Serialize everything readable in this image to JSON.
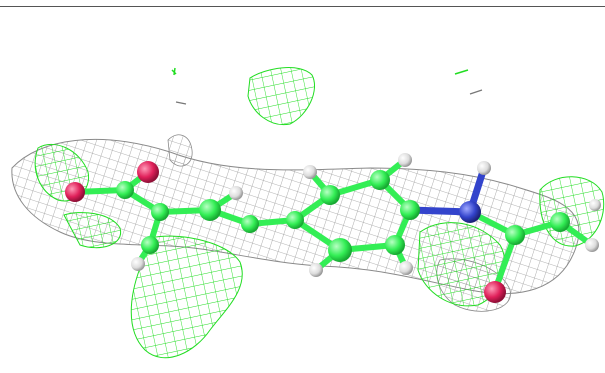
{
  "viewer": {
    "background": "#ffffff",
    "top_rule_color": "#555555"
  },
  "scene": {
    "subject": "molecule-with-electron-density-mesh",
    "representation": "ball-and-stick",
    "colors": {
      "carbon": "#33ee55",
      "hydrogen": "#e8e8e8",
      "oxygen": "#e0205a",
      "nitrogen": "#3344cc",
      "density_mesh_grey": "#9a9a9a",
      "density_mesh_green": "#22dd22"
    }
  }
}
